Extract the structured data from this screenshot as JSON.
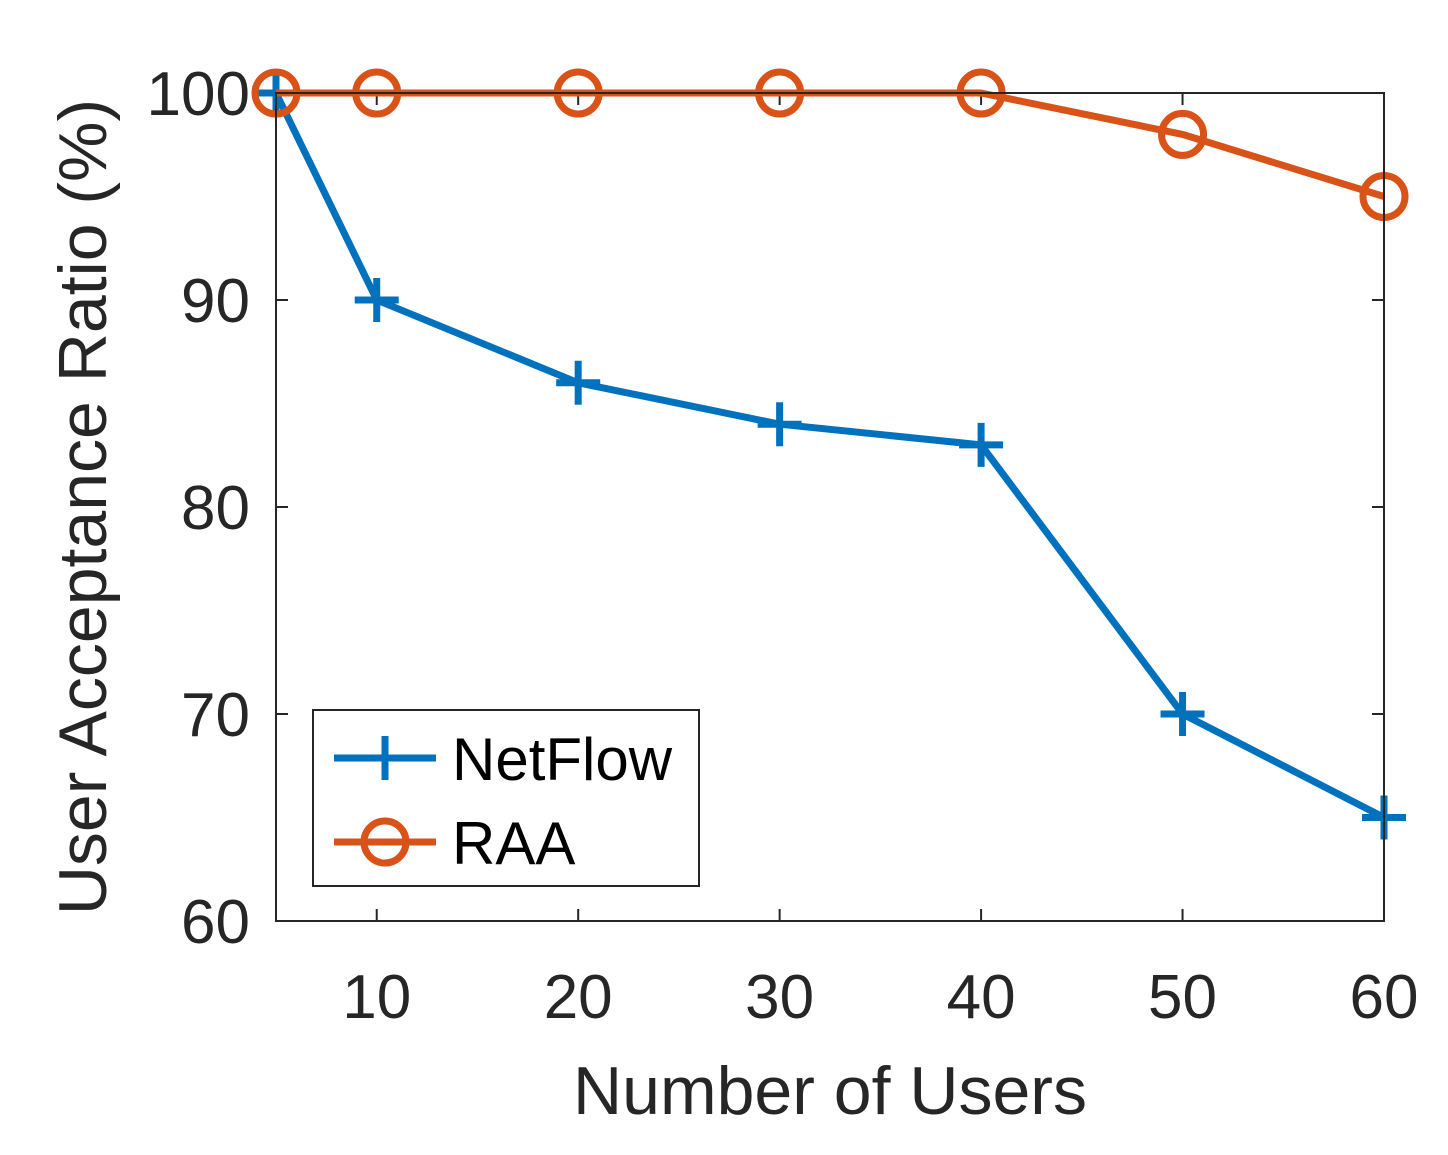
{
  "chart_data": {
    "type": "line",
    "title": "",
    "xlabel": "Number of Users",
    "ylabel": "User Acceptance Ratio (%)",
    "xlim": [
      5,
      60
    ],
    "ylim": [
      60,
      100
    ],
    "xticks": [
      10,
      20,
      30,
      40,
      50,
      60
    ],
    "yticks": [
      60,
      70,
      80,
      90,
      100
    ],
    "xtick_labels": [
      "10",
      "20",
      "30",
      "40",
      "50",
      "60"
    ],
    "ytick_labels": [
      "60",
      "70",
      "80",
      "90",
      "100"
    ],
    "grid": false,
    "legend_position": "bottom-left",
    "x": [
      5,
      10,
      20,
      30,
      40,
      50,
      60
    ],
    "series": [
      {
        "name": "NetFlow",
        "marker": "plus",
        "color": "#0072BD",
        "values": [
          100,
          90,
          86,
          84,
          83,
          70,
          65
        ]
      },
      {
        "name": "RAA",
        "marker": "circle",
        "color": "#D95319",
        "values": [
          100,
          100,
          100,
          100,
          100,
          98,
          95
        ]
      }
    ]
  }
}
